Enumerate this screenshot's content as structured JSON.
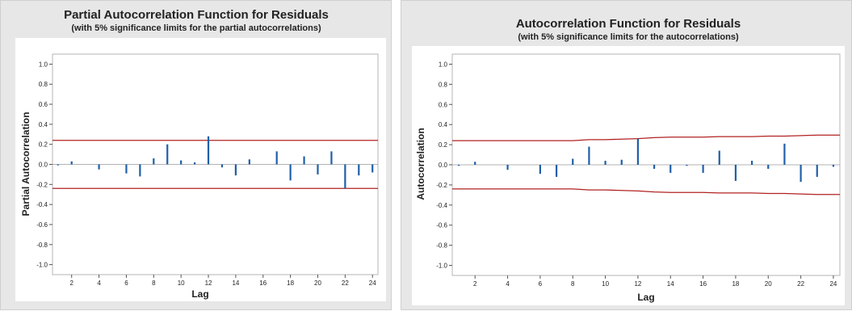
{
  "colors": {
    "bar": "#1f5fa8",
    "limit": "#b22222",
    "panel_background": "#e7e7e7",
    "plot_background": "#ffffff",
    "zero_line": "#9a9a9a"
  },
  "chart_data": [
    {
      "type": "bar",
      "title": "Partial Autocorrelation Function for Residuals",
      "subtitle": "(with 5% significance limits for the partial autocorrelations)",
      "xlabel": "Lag",
      "ylabel": "Partial Autocorrelation",
      "xlim": [
        0.6,
        24.4
      ],
      "ylim": [
        -1.1,
        1.1
      ],
      "x_ticks": [
        2,
        4,
        6,
        8,
        10,
        12,
        14,
        16,
        18,
        20,
        22,
        24
      ],
      "y_ticks": [
        -1.0,
        -0.8,
        -0.6,
        -0.4,
        -0.2,
        0.0,
        0.2,
        0.4,
        0.6,
        0.8,
        1.0
      ],
      "y_tick_labels": [
        "-1.0",
        "-0.8",
        "-0.6",
        "-0.4",
        "-0.2",
        "0.0",
        "0.2",
        "0.4",
        "0.6",
        "0.8",
        "1.0"
      ],
      "grid": false,
      "lags": [
        1,
        2,
        3,
        4,
        5,
        6,
        7,
        8,
        9,
        10,
        11,
        12,
        13,
        14,
        15,
        16,
        17,
        18,
        19,
        20,
        21,
        22,
        23,
        24
      ],
      "values": [
        -0.01,
        0.03,
        0.0,
        -0.05,
        0.0,
        -0.09,
        -0.12,
        0.06,
        0.2,
        0.04,
        0.02,
        0.28,
        -0.03,
        -0.11,
        0.05,
        0.0,
        0.13,
        -0.16,
        0.08,
        -0.1,
        0.13,
        -0.24,
        -0.11,
        -0.08
      ],
      "significance_limits": {
        "upper": [
          0.24,
          0.24,
          0.24,
          0.24,
          0.24,
          0.24,
          0.24,
          0.24,
          0.24,
          0.24,
          0.24,
          0.24,
          0.24,
          0.24,
          0.24,
          0.24,
          0.24,
          0.24,
          0.24,
          0.24,
          0.24,
          0.24,
          0.24,
          0.24
        ],
        "lower": [
          -0.24,
          -0.24,
          -0.24,
          -0.24,
          -0.24,
          -0.24,
          -0.24,
          -0.24,
          -0.24,
          -0.24,
          -0.24,
          -0.24,
          -0.24,
          -0.24,
          -0.24,
          -0.24,
          -0.24,
          -0.24,
          -0.24,
          -0.24,
          -0.24,
          -0.24,
          -0.24,
          -0.24
        ]
      }
    },
    {
      "type": "bar",
      "title": "Autocorrelation Function for Residuals",
      "subtitle": "(with 5% significance limits for the autocorrelations)",
      "xlabel": "Lag",
      "ylabel": "Autocorrelation",
      "xlim": [
        0.6,
        24.4
      ],
      "ylim": [
        -1.1,
        1.1
      ],
      "x_ticks": [
        2,
        4,
        6,
        8,
        10,
        12,
        14,
        16,
        18,
        20,
        22,
        24
      ],
      "y_ticks": [
        -1.0,
        -0.8,
        -0.6,
        -0.4,
        -0.2,
        0.0,
        0.2,
        0.4,
        0.6,
        0.8,
        1.0
      ],
      "y_tick_labels": [
        "-1.0",
        "-0.8",
        "-0.6",
        "-0.4",
        "-0.2",
        "0.0",
        "0.2",
        "0.4",
        "0.6",
        "0.8",
        "1.0"
      ],
      "grid": false,
      "lags": [
        1,
        2,
        3,
        4,
        5,
        6,
        7,
        8,
        9,
        10,
        11,
        12,
        13,
        14,
        15,
        16,
        17,
        18,
        19,
        20,
        21,
        22,
        23,
        24
      ],
      "values": [
        -0.01,
        0.03,
        0.0,
        -0.05,
        0.0,
        -0.09,
        -0.12,
        0.06,
        0.18,
        0.04,
        0.05,
        0.26,
        -0.04,
        -0.08,
        -0.01,
        -0.08,
        0.14,
        -0.16,
        0.04,
        -0.04,
        0.21,
        -0.17,
        -0.12,
        -0.02
      ],
      "significance_limits": {
        "upper": [
          0.24,
          0.24,
          0.24,
          0.24,
          0.24,
          0.24,
          0.24,
          0.24,
          0.25,
          0.25,
          0.255,
          0.26,
          0.27,
          0.275,
          0.275,
          0.275,
          0.28,
          0.28,
          0.28,
          0.285,
          0.285,
          0.29,
          0.295,
          0.295
        ],
        "lower": [
          -0.24,
          -0.24,
          -0.24,
          -0.24,
          -0.24,
          -0.24,
          -0.24,
          -0.24,
          -0.25,
          -0.25,
          -0.255,
          -0.26,
          -0.27,
          -0.275,
          -0.275,
          -0.275,
          -0.28,
          -0.28,
          -0.28,
          -0.285,
          -0.285,
          -0.29,
          -0.295,
          -0.295
        ]
      }
    }
  ]
}
